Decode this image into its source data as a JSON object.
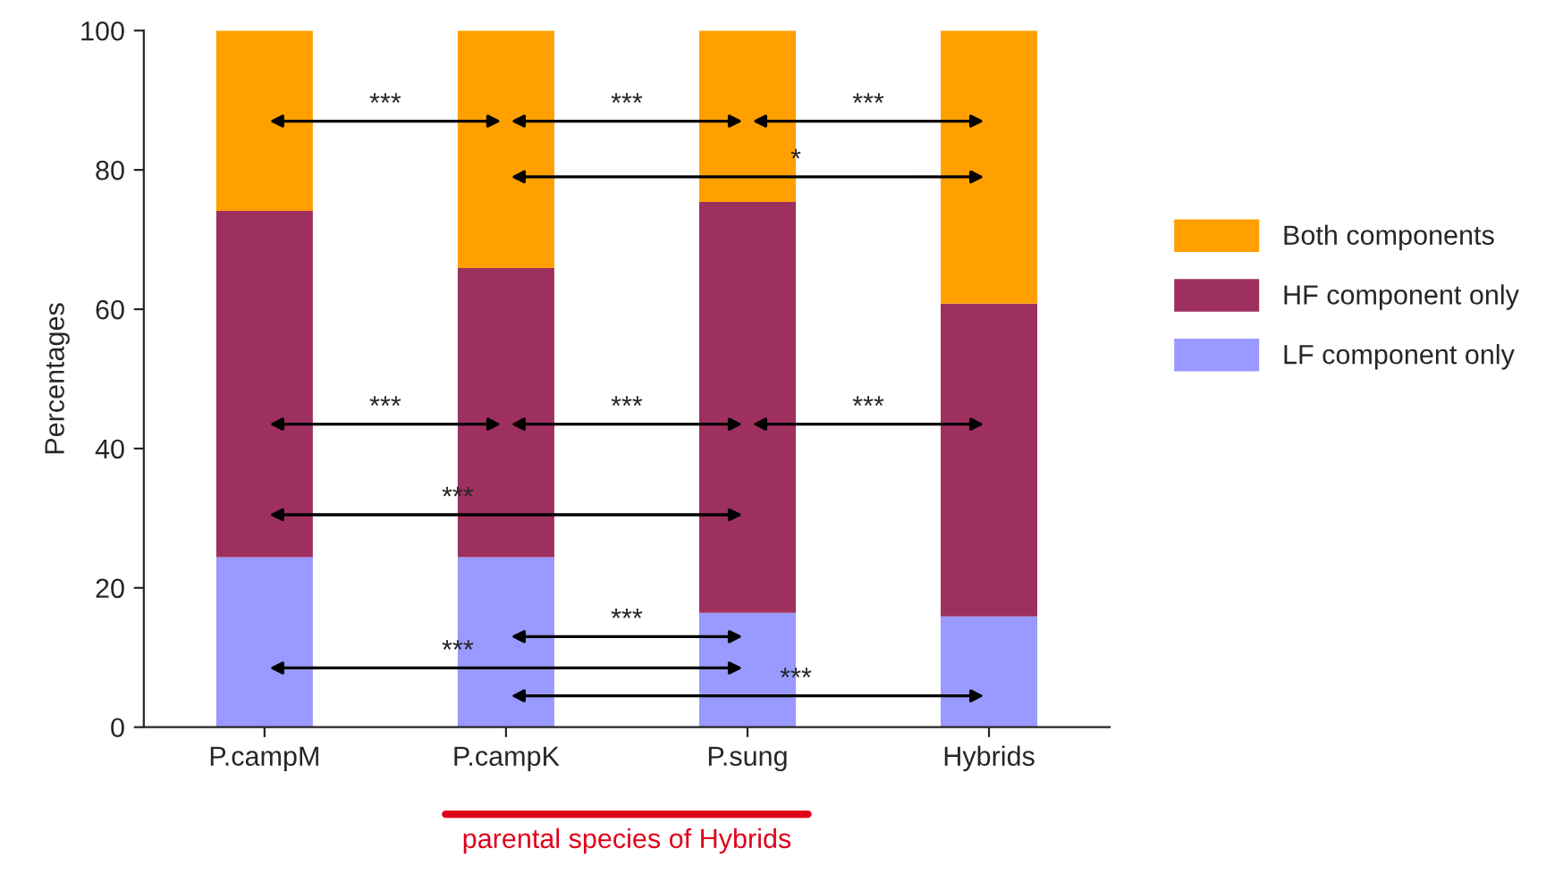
{
  "chart_data": {
    "type": "bar",
    "stacked": true,
    "ylabel": "Percentages",
    "categories": [
      "P.campM",
      "P.campK",
      "P.sung",
      "Hybrids"
    ],
    "series": [
      {
        "name": "LF component only",
        "color": "#9999ff",
        "values": [
          24.4,
          24.4,
          16.4,
          15.9
        ]
      },
      {
        "name": "HF component only",
        "color": "#9e3060",
        "values": [
          49.7,
          41.5,
          59.0,
          44.9
        ]
      },
      {
        "name": "Both components",
        "color": "#ffa000",
        "values": [
          25.9,
          34.1,
          24.6,
          39.2
        ]
      }
    ],
    "ylim": [
      0,
      100
    ],
    "yticks": [
      0,
      20,
      40,
      60,
      80,
      100
    ],
    "grid": false,
    "legend": "right",
    "annotations": [
      "***",
      "***",
      "***",
      "*",
      "***",
      "***",
      "***",
      "***",
      "***",
      "***",
      "***",
      "parental species of Hybrids"
    ]
  }
}
